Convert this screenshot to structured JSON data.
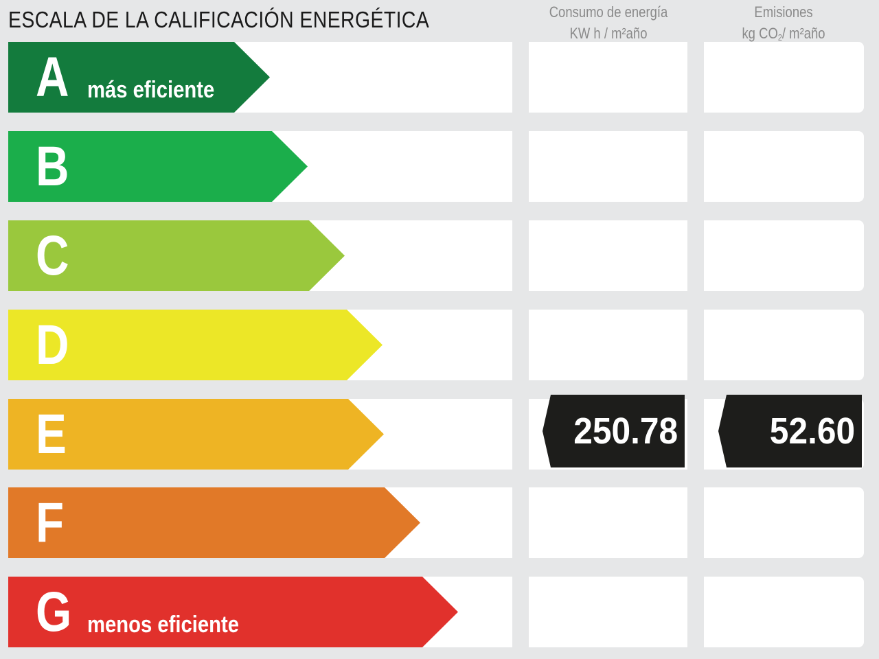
{
  "title": "ESCALA DE LA CALIFICACIÓN ENERGÉTICA",
  "columns": {
    "energy": {
      "line1": "Consumo de energía",
      "line2": "KW h / m²año"
    },
    "emissions": {
      "line1": "Emisiones",
      "line2_prefix": "kg CO",
      "line2_sub": "2",
      "line2_suffix": "/ m²año"
    }
  },
  "classes": [
    {
      "letter": "A",
      "sublabel": "más eficiente",
      "color": "#137b3d"
    },
    {
      "letter": "B",
      "sublabel": "",
      "color": "#1bae4b"
    },
    {
      "letter": "C",
      "sublabel": "",
      "color": "#9ac83d"
    },
    {
      "letter": "D",
      "sublabel": "",
      "color": "#ece727"
    },
    {
      "letter": "E",
      "sublabel": "",
      "color": "#eeb424"
    },
    {
      "letter": "F",
      "sublabel": "",
      "color": "#e17928"
    },
    {
      "letter": "G",
      "sublabel": "menos eficiente",
      "color": "#e1312c"
    }
  ],
  "rating": {
    "class": "E",
    "energy_value": "250.78",
    "emissions_value": "52.60",
    "badge_color": "#1d1d1b"
  }
}
